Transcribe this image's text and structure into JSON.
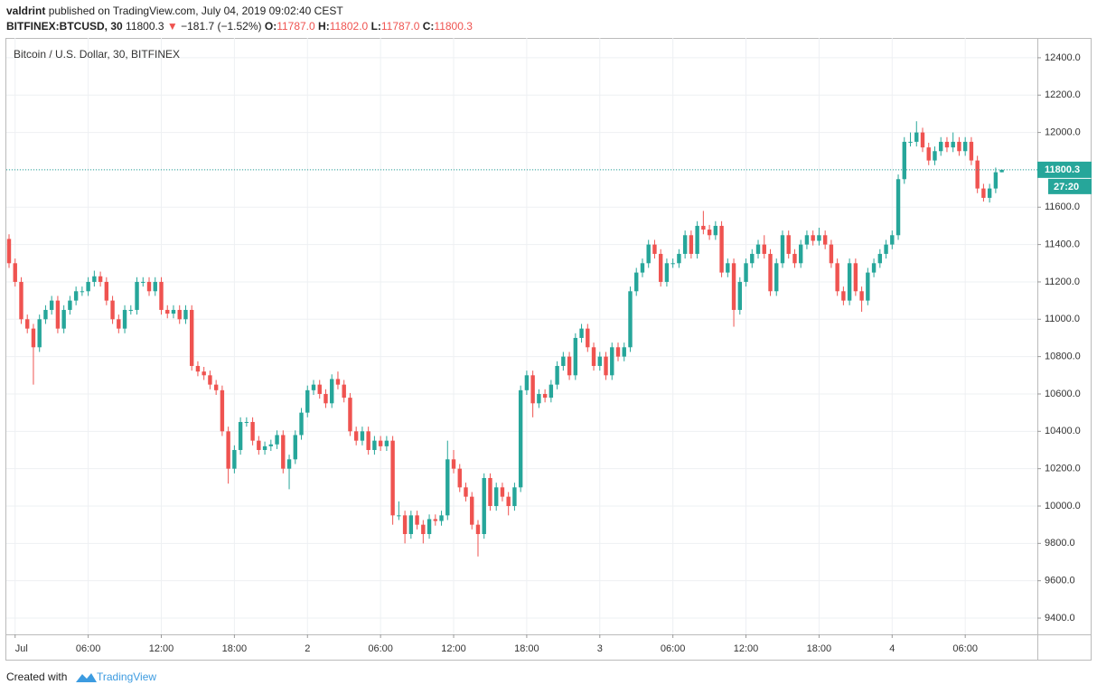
{
  "header": {
    "author": "valdrint",
    "published": "published on TradingView.com, July 04, 2019 09:02:40 CEST",
    "symbol": "BITFINEX:BTCUSD, 30",
    "last": "11800.3",
    "arrow": "▼",
    "change": "−181.7 (−1.52%)",
    "o_key": "O:",
    "o_val": "11787.0",
    "h_key": "H:",
    "h_val": "11802.0",
    "l_key": "L:",
    "l_val": "11787.0",
    "c_key": "C:",
    "c_val": "11800.3"
  },
  "footer": {
    "created": "Created with",
    "brand": "TradingView"
  },
  "chart_data": {
    "type": "candlestick",
    "title": "Bitcoin / U.S. Dollar, 30, BITFINEX",
    "up_color": "#26a69a",
    "down_color": "#ef5350",
    "grid": true,
    "countdown": "27:20",
    "categories": [
      null,
      "Jul",
      null,
      null,
      null,
      null,
      null,
      null,
      null,
      null,
      null,
      null,
      null,
      "06:00",
      null,
      null,
      null,
      null,
      null,
      null,
      null,
      null,
      null,
      null,
      null,
      "12:00",
      null,
      null,
      null,
      null,
      null,
      null,
      null,
      null,
      null,
      null,
      null,
      "18:00",
      null,
      null,
      null,
      null,
      null,
      null,
      null,
      null,
      null,
      null,
      null,
      "2",
      null,
      null,
      null,
      null,
      null,
      null,
      null,
      null,
      null,
      null,
      null,
      "06:00",
      null,
      null,
      null,
      null,
      null,
      null,
      null,
      null,
      null,
      null,
      null,
      "12:00",
      null,
      null,
      null,
      null,
      null,
      null,
      null,
      null,
      null,
      null,
      null,
      "18:00",
      null,
      null,
      null,
      null,
      null,
      null,
      null,
      null,
      null,
      null,
      null,
      "3",
      null,
      null,
      null,
      null,
      null,
      null,
      null,
      null,
      null,
      null,
      null,
      "06:00",
      null,
      null,
      null,
      null,
      null,
      null,
      null,
      null,
      null,
      null,
      null,
      "12:00",
      null,
      null,
      null,
      null,
      null,
      null,
      null,
      null,
      null,
      null,
      null,
      "18:00",
      null,
      null,
      null,
      null,
      null,
      null,
      null,
      null,
      null,
      null,
      null,
      "4",
      null,
      null,
      null,
      null,
      null,
      null,
      null,
      null,
      null,
      null,
      null,
      "06:00",
      null,
      null,
      null,
      null,
      null,
      null
    ],
    "open": [
      11430,
      11300,
      11200,
      11000,
      10950,
      10850,
      11000,
      11050,
      11100,
      10950,
      11050,
      11100,
      11150,
      11150,
      11200,
      11230,
      11200,
      11100,
      11000,
      10950,
      11050,
      11050,
      11200,
      11200,
      11150,
      11200,
      11050,
      11030,
      11050,
      11000,
      11050,
      10750,
      10720,
      10700,
      10650,
      10620,
      10400,
      10200,
      10300,
      10450,
      10450,
      10350,
      10300,
      10320,
      10330,
      10380,
      10200,
      10250,
      10380,
      10500,
      10620,
      10650,
      10600,
      10550,
      10680,
      10650,
      10580,
      10400,
      10350,
      10400,
      10300,
      10350,
      10320,
      10350,
      9950,
      9950,
      9850,
      9950,
      9900,
      9850,
      9930,
      9920,
      9950,
      10250,
      10200,
      10100,
      10050,
      9900,
      9850,
      10150,
      10000,
      10100,
      10050,
      10000,
      10100,
      10620,
      10700,
      10550,
      10600,
      10580,
      10650,
      10750,
      10800,
      10700,
      10900,
      10950,
      10850,
      10750,
      10800,
      10700,
      10850,
      10800,
      10850,
      11150,
      11250,
      11300,
      11400,
      11350,
      11200,
      11300,
      11300,
      11350,
      11450,
      11350,
      11500,
      11480,
      11450,
      11500,
      11250,
      11300,
      11050,
      11200,
      11300,
      11350,
      11400,
      11350,
      11150,
      11300,
      11450,
      11350,
      11300,
      11400,
      11450,
      11420,
      11450,
      11400,
      11300,
      11150,
      11100,
      11300,
      11150,
      11100,
      11250,
      11300,
      11350,
      11400,
      11450,
      11750,
      11950,
      11950,
      12000,
      11920,
      11850,
      11900,
      11950,
      11920,
      11950,
      11900,
      11950,
      11850,
      11700,
      11650,
      11700,
      11787
    ],
    "high": [
      11455,
      11325,
      11225,
      11025,
      10975,
      11025,
      11075,
      11125,
      11125,
      11075,
      11125,
      11175,
      11175,
      11225,
      11260,
      11255,
      11225,
      11125,
      11025,
      11075,
      11075,
      11225,
      11225,
      11225,
      11225,
      11225,
      11075,
      11075,
      11075,
      11075,
      11075,
      10775,
      10745,
      10725,
      10675,
      10645,
      10425,
      10325,
      10475,
      10475,
      10475,
      10375,
      10345,
      10355,
      10405,
      10405,
      10275,
      10405,
      10525,
      10645,
      10675,
      10675,
      10625,
      10705,
      10720,
      10675,
      10605,
      10425,
      10425,
      10425,
      10375,
      10375,
      10375,
      10375,
      10025,
      9975,
      9975,
      9975,
      9925,
      9955,
      9955,
      9975,
      10350,
      10300,
      10225,
      10125,
      10075,
      9925,
      10175,
      10175,
      10125,
      10125,
      10075,
      10125,
      10645,
      10725,
      10725,
      10625,
      10625,
      10675,
      10775,
      10825,
      10825,
      10925,
      10975,
      10975,
      10875,
      10825,
      10825,
      10875,
      10875,
      10875,
      11175,
      11275,
      11325,
      11425,
      11425,
      11375,
      11325,
      11325,
      11375,
      11475,
      11475,
      11525,
      11580,
      11505,
      11525,
      11525,
      11325,
      11325,
      11225,
      11325,
      11375,
      11425,
      11450,
      11375,
      11325,
      11475,
      11475,
      11375,
      11425,
      11475,
      11475,
      11490,
      11475,
      11425,
      11325,
      11175,
      11325,
      11325,
      11175,
      11275,
      11325,
      11375,
      11425,
      11475,
      11775,
      11975,
      12000,
      12060,
      12025,
      11945,
      11925,
      11975,
      11975,
      12000,
      11975,
      11975,
      11975,
      11875,
      11725,
      11725,
      11812,
      11802
    ],
    "low": [
      11275,
      11175,
      10975,
      10925,
      10650,
      10825,
      10975,
      11025,
      10925,
      10925,
      11025,
      11075,
      11125,
      11125,
      11175,
      11175,
      11075,
      10975,
      10925,
      10925,
      11025,
      11025,
      11175,
      11125,
      11125,
      11025,
      11005,
      11005,
      10975,
      10975,
      10725,
      10695,
      10675,
      10625,
      10595,
      10375,
      10120,
      10175,
      10275,
      10425,
      10325,
      10275,
      10275,
      10295,
      10305,
      10175,
      10090,
      10225,
      10355,
      10475,
      10595,
      10575,
      10525,
      10525,
      10625,
      10555,
      10375,
      10325,
      10325,
      10275,
      10275,
      10295,
      10295,
      9900,
      9925,
      9800,
      9825,
      9875,
      9800,
      9825,
      9895,
      9895,
      9925,
      10175,
      10075,
      10025,
      9875,
      9730,
      9825,
      9975,
      9975,
      10025,
      9950,
      9975,
      10075,
      10595,
      10475,
      10525,
      10555,
      10555,
      10625,
      10725,
      10675,
      10675,
      10875,
      10825,
      10725,
      10725,
      10675,
      10675,
      10775,
      10775,
      10825,
      11125,
      11225,
      11275,
      11325,
      11175,
      11175,
      11275,
      11275,
      11325,
      11325,
      11325,
      11455,
      11425,
      11425,
      11225,
      11225,
      10960,
      11025,
      11175,
      11275,
      11325,
      11325,
      11125,
      11125,
      11275,
      11325,
      11275,
      11275,
      11375,
      11395,
      11395,
      11375,
      11275,
      11125,
      11075,
      11075,
      11125,
      11040,
      11075,
      11225,
      11275,
      11325,
      11375,
      11425,
      11725,
      11925,
      11925,
      11895,
      11825,
      11825,
      11875,
      11895,
      11895,
      11875,
      11875,
      11825,
      11675,
      11630,
      11625,
      11675,
      11787
    ],
    "close": [
      11300,
      11200,
      11000,
      10950,
      10850,
      11000,
      11050,
      11100,
      10950,
      11050,
      11100,
      11150,
      11150,
      11200,
      11230,
      11200,
      11100,
      11000,
      10950,
      11050,
      11050,
      11200,
      11200,
      11150,
      11200,
      11050,
      11030,
      11050,
      11000,
      11050,
      10750,
      10720,
      10700,
      10650,
      10620,
      10400,
      10200,
      10300,
      10450,
      10450,
      10350,
      10300,
      10320,
      10330,
      10380,
      10200,
      10250,
      10380,
      10500,
      10620,
      10650,
      10600,
      10550,
      10680,
      10650,
      10580,
      10400,
      10350,
      10400,
      10300,
      10350,
      10320,
      10350,
      9950,
      9950,
      9850,
      9950,
      9900,
      9850,
      9930,
      9920,
      9950,
      10250,
      10200,
      10100,
      10050,
      9900,
      9850,
      10150,
      10000,
      10100,
      10050,
      10000,
      10100,
      10620,
      10700,
      10550,
      10600,
      10580,
      10650,
      10750,
      10800,
      10700,
      10900,
      10950,
      10850,
      10750,
      10800,
      10700,
      10850,
      10800,
      10850,
      11150,
      11250,
      11300,
      11400,
      11350,
      11200,
      11300,
      11300,
      11350,
      11450,
      11350,
      11500,
      11480,
      11450,
      11500,
      11250,
      11300,
      11050,
      11200,
      11300,
      11350,
      11400,
      11350,
      11150,
      11300,
      11450,
      11350,
      11300,
      11400,
      11450,
      11420,
      11450,
      11400,
      11300,
      11150,
      11100,
      11300,
      11150,
      11100,
      11250,
      11300,
      11350,
      11400,
      11450,
      11750,
      11950,
      11950,
      12000,
      11920,
      11850,
      11900,
      11950,
      11920,
      11950,
      11900,
      11950,
      11850,
      11700,
      11650,
      11700,
      11787,
      11800.3
    ],
    "ylim": [
      9313,
      12506
    ],
    "yticks": [
      {
        "value": 9400,
        "label": "9400.0"
      },
      {
        "value": 9600,
        "label": "9600.0"
      },
      {
        "value": 9800,
        "label": "9800.0"
      },
      {
        "value": 10000,
        "label": "10000.0"
      },
      {
        "value": 10200,
        "label": "10200.0"
      },
      {
        "value": 10400,
        "label": "10400.0"
      },
      {
        "value": 10600,
        "label": "10600.0"
      },
      {
        "value": 10800,
        "label": "10800.0"
      },
      {
        "value": 11000,
        "label": "11000.0"
      },
      {
        "value": 11200,
        "label": "11200.0"
      },
      {
        "value": 11400,
        "label": "11400.0"
      },
      {
        "value": 11600,
        "label": "11600.0"
      },
      {
        "value": 11800,
        "label": "11800.0"
      },
      {
        "value": 12000,
        "label": "12000.0"
      },
      {
        "value": 12200,
        "label": "12200.0"
      },
      {
        "value": 12400,
        "label": "12400.0"
      }
    ]
  }
}
